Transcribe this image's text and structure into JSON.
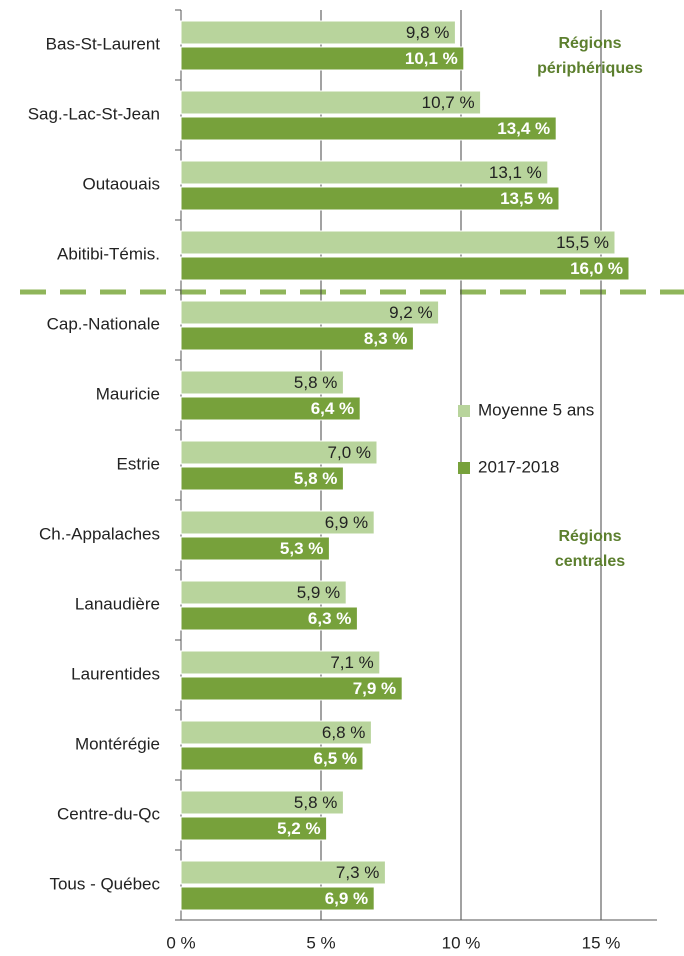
{
  "chart_data": {
    "type": "bar",
    "orientation": "horizontal",
    "categories": [
      "Bas-St-Laurent",
      "Sag.-Lac-St-Jean",
      "Outaouais",
      "Abitibi-Témis.",
      "Cap.-Nationale",
      "Mauricie",
      "Estrie",
      "Ch.-Appalaches",
      "Lanaudière",
      "Laurentides",
      "Montérégie",
      "Centre-du-Qc",
      "Tous - Québec"
    ],
    "series": [
      {
        "name": "Moyenne 5 ans",
        "color": "#b8d49c",
        "values": [
          9.8,
          10.7,
          13.1,
          15.5,
          9.2,
          5.8,
          7.0,
          6.9,
          5.9,
          7.1,
          6.8,
          5.8,
          7.3
        ],
        "value_labels": [
          "9,8 %",
          "10,7 %",
          "13,1 %",
          "15,5 %",
          "9,2 %",
          "5,8 %",
          "7,0 %",
          "6,9 %",
          "5,9 %",
          "7,1 %",
          "6,8 %",
          "5,8 %",
          "7,3 %"
        ]
      },
      {
        "name": "2017-2018",
        "color": "#77a13b",
        "values": [
          10.1,
          13.4,
          13.5,
          16.0,
          8.3,
          6.4,
          5.8,
          5.3,
          6.3,
          7.9,
          6.5,
          5.2,
          6.9
        ],
        "value_labels": [
          "10,1 %",
          "13,4 %",
          "13,5 %",
          "16,0 %",
          "8,3 %",
          "6,4 %",
          "5,8 %",
          "5,3 %",
          "6,3 %",
          "7,9 %",
          "6,5 %",
          "5,2 %",
          "6,9 %"
        ]
      }
    ],
    "xlim": [
      0,
      17
    ],
    "xticks": [
      {
        "value": 0,
        "label": "0 %"
      },
      {
        "value": 5,
        "label": "5 %"
      },
      {
        "value": 10,
        "label": "10 %"
      },
      {
        "value": 15,
        "label": "15 %"
      }
    ],
    "grid": true,
    "annotations": [
      {
        "lines": [
          "Régions",
          "périphériques"
        ]
      },
      {
        "lines": [
          "Régions",
          "centrales"
        ]
      }
    ]
  }
}
